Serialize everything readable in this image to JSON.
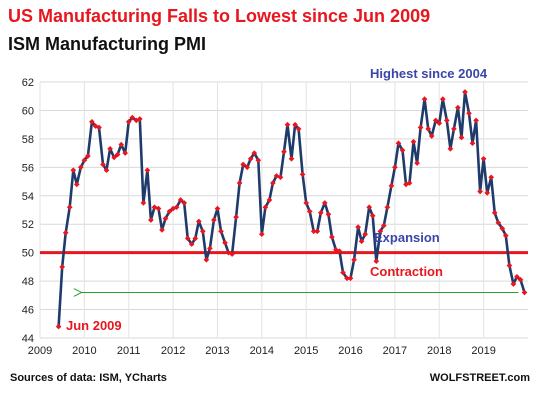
{
  "chart_data": {
    "type": "line",
    "title": "US Manufacturing  Falls to Lowest since Jun 2009",
    "subtitle": "ISM Manufacturing  PMI",
    "xlabel": "",
    "ylabel": "",
    "xlim": [
      2009.0,
      2020.0
    ],
    "ylim": [
      44,
      62
    ],
    "x_ticks": [
      "2009",
      "2010",
      "2011",
      "2012",
      "2013",
      "2014",
      "2015",
      "2016",
      "2017",
      "2018",
      "2019"
    ],
    "y_ticks": [
      "44",
      "46",
      "48",
      "50",
      "52",
      "54",
      "56",
      "58",
      "60",
      "62"
    ],
    "grid": true,
    "reference_line": {
      "y": 50,
      "color": "#e8161e"
    },
    "annotations": {
      "highest": "Highest since 2004",
      "expansion": "Expansion",
      "contraction": "Contraction",
      "jun2009": "Jun 2009"
    },
    "series": [
      {
        "line_color": "#1f3b6b",
        "marker_color": "#e8161e",
        "x": [
          2009.42,
          2009.5,
          2009.58,
          2009.67,
          2009.75,
          2009.83,
          2009.92,
          2010.0,
          2010.08,
          2010.17,
          2010.25,
          2010.33,
          2010.42,
          2010.5,
          2010.58,
          2010.67,
          2010.75,
          2010.83,
          2010.92,
          2011.0,
          2011.08,
          2011.17,
          2011.25,
          2011.33,
          2011.42,
          2011.5,
          2011.58,
          2011.67,
          2011.75,
          2011.83,
          2011.92,
          2012.0,
          2012.08,
          2012.17,
          2012.25,
          2012.33,
          2012.42,
          2012.5,
          2012.58,
          2012.67,
          2012.75,
          2012.83,
          2012.92,
          2013.0,
          2013.08,
          2013.17,
          2013.25,
          2013.33,
          2013.42,
          2013.5,
          2013.58,
          2013.67,
          2013.75,
          2013.83,
          2013.92,
          2014.0,
          2014.08,
          2014.17,
          2014.25,
          2014.33,
          2014.42,
          2014.5,
          2014.58,
          2014.67,
          2014.75,
          2014.83,
          2014.92,
          2015.0,
          2015.08,
          2015.17,
          2015.25,
          2015.33,
          2015.42,
          2015.5,
          2015.58,
          2015.67,
          2015.75,
          2015.83,
          2015.92,
          2016.0,
          2016.08,
          2016.17,
          2016.25,
          2016.33,
          2016.42,
          2016.5,
          2016.58,
          2016.67,
          2016.75,
          2016.83,
          2016.92,
          2017.0,
          2017.08,
          2017.17,
          2017.25,
          2017.33,
          2017.42,
          2017.5,
          2017.58,
          2017.67,
          2017.75,
          2017.83,
          2017.92,
          2018.0,
          2018.08,
          2018.17,
          2018.25,
          2018.33,
          2018.42,
          2018.5,
          2018.58,
          2018.67,
          2018.75,
          2018.83,
          2018.92,
          2019.0,
          2019.08,
          2019.17,
          2019.25,
          2019.33,
          2019.42,
          2019.5,
          2019.58,
          2019.67,
          2019.75,
          2019.83,
          2019.92
        ],
        "values": [
          44.8,
          49.0,
          51.4,
          53.2,
          55.8,
          54.8,
          56.0,
          56.5,
          56.8,
          59.2,
          58.9,
          58.8,
          56.2,
          55.8,
          57.3,
          56.7,
          56.9,
          57.6,
          57.0,
          59.2,
          59.5,
          59.3,
          59.4,
          53.5,
          55.8,
          52.3,
          53.2,
          53.1,
          51.6,
          52.4,
          52.9,
          53.1,
          53.2,
          53.7,
          53.5,
          51.0,
          50.6,
          51.0,
          52.2,
          51.5,
          49.5,
          50.3,
          52.3,
          53.1,
          51.5,
          50.7,
          50.0,
          49.9,
          52.5,
          54.9,
          56.2,
          56.0,
          56.6,
          57.0,
          56.5,
          51.3,
          53.2,
          53.7,
          54.9,
          55.4,
          55.3,
          57.1,
          59.0,
          56.6,
          59.0,
          58.7,
          55.5,
          53.5,
          52.9,
          51.5,
          51.5,
          52.8,
          53.5,
          52.7,
          51.1,
          50.2,
          50.1,
          48.6,
          48.2,
          48.2,
          49.5,
          51.8,
          50.8,
          51.3,
          53.2,
          52.6,
          49.4,
          51.5,
          51.9,
          53.2,
          54.7,
          56.0,
          57.7,
          57.2,
          54.8,
          54.9,
          57.8,
          56.3,
          58.8,
          60.8,
          58.7,
          58.2,
          59.3,
          59.1,
          60.8,
          59.3,
          57.3,
          58.7,
          60.2,
          58.1,
          61.3,
          59.8,
          57.7,
          59.3,
          54.3,
          56.6,
          54.2,
          55.3,
          52.8,
          52.1,
          51.7,
          51.2,
          49.1,
          47.8,
          48.3,
          48.1,
          47.2
        ]
      }
    ]
  },
  "footer": {
    "source": "Sources of data: ISM, YCharts",
    "brand": "WOLFSTREET.com"
  }
}
